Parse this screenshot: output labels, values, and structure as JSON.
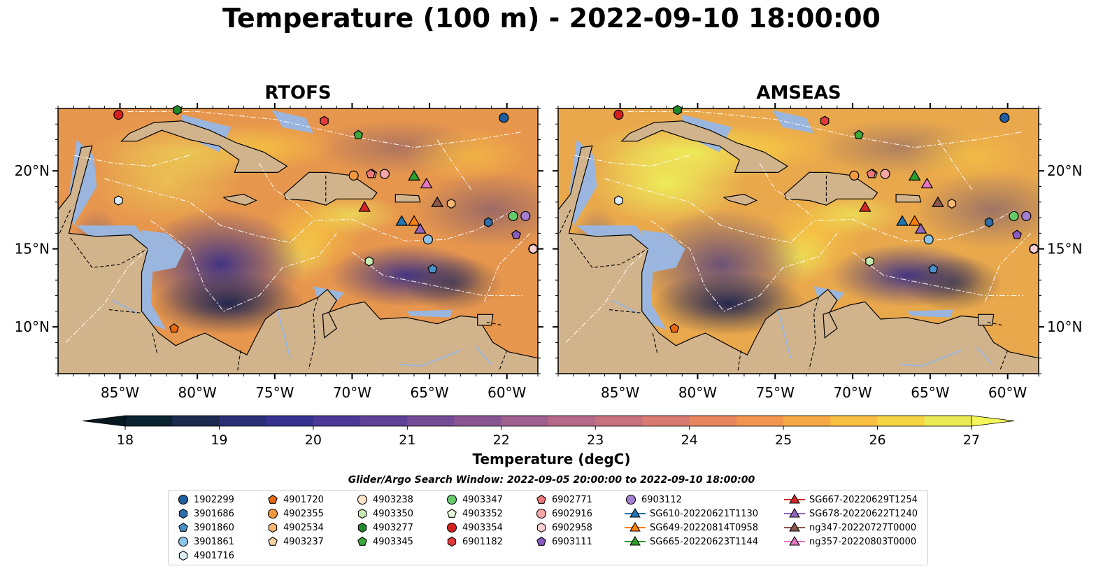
{
  "title": "Temperature (100 m) - 2022-09-10 18:00:00",
  "chart_data": [
    {
      "type": "heatmap",
      "title": "RTOFS",
      "variable": "Temperature (100 m)",
      "xlim": [
        -89,
        -58
      ],
      "ylim": [
        7,
        24
      ],
      "xticks": [
        "85°W",
        "80°W",
        "75°W",
        "70°W",
        "65°W",
        "60°W"
      ],
      "yticks": [
        "20°N",
        "15°N",
        "10°N"
      ]
    },
    {
      "type": "heatmap",
      "title": "AMSEAS",
      "variable": "Temperature (100 m)",
      "xlim": [
        -89,
        -58
      ],
      "ylim": [
        7,
        24
      ],
      "xticks": [
        "85°W",
        "80°W",
        "75°W",
        "70°W",
        "65°W",
        "60°W"
      ],
      "yticks": [
        "20°N",
        "15°N",
        "10°N"
      ]
    }
  ],
  "colorbar": {
    "label": "Temperature (degC)",
    "min": 18,
    "max": 27,
    "ticks": [
      "18",
      "19",
      "20",
      "21",
      "22",
      "23",
      "24",
      "25",
      "26",
      "27"
    ],
    "colors": [
      "#0b2230",
      "#1b2a4e",
      "#2b2f78",
      "#35338f",
      "#4a3996",
      "#5f4197",
      "#744b96",
      "#8a5594",
      "#9f5f8f",
      "#b56888",
      "#c8707e",
      "#d97a70",
      "#e8865f",
      "#f2964f",
      "#f7a945",
      "#f9bf40",
      "#f6d444",
      "#eaea56"
    ]
  },
  "search_window": "Glider/Argo Search Window: 2022-09-05 20:00:00 to 2022-09-10 18:00:00",
  "legend": [
    {
      "label": "1902299",
      "marker": "circle",
      "color": "#1f5fa0"
    },
    {
      "label": "3901686",
      "marker": "hexagon",
      "color": "#2f6ea8"
    },
    {
      "label": "3901860",
      "marker": "pentagon",
      "color": "#4a90c8"
    },
    {
      "label": "3901861",
      "marker": "circle",
      "color": "#8cc3e8"
    },
    {
      "label": "4901716",
      "marker": "hexagon",
      "color": "#dceefa"
    },
    {
      "label": "4901720",
      "marker": "pentagon",
      "color": "#e86a10"
    },
    {
      "label": "4902355",
      "marker": "circle",
      "color": "#f39a40"
    },
    {
      "label": "4902534",
      "marker": "hexagon",
      "color": "#f8b870"
    },
    {
      "label": "4903237",
      "marker": "pentagon",
      "color": "#fbd2a4"
    },
    {
      "label": "4903238",
      "marker": "circle",
      "color": "#fde5cc"
    },
    {
      "label": "4903350",
      "marker": "hexagon",
      "color": "#c4ecb0"
    },
    {
      "label": "4903277",
      "marker": "hexagon",
      "color": "#1e8a2a"
    },
    {
      "label": "4903345",
      "marker": "pentagon",
      "color": "#3aa83a"
    },
    {
      "label": "4903347",
      "marker": "circle",
      "color": "#66c96a"
    },
    {
      "label": "4903352",
      "marker": "pentagon",
      "color": "#e6f8dc"
    },
    {
      "label": "4903354",
      "marker": "circle",
      "color": "#d62020"
    },
    {
      "label": "6901182",
      "marker": "hexagon",
      "color": "#e23a3a"
    },
    {
      "label": "6902771",
      "marker": "pentagon",
      "color": "#f07a7a"
    },
    {
      "label": "6902916",
      "marker": "circle",
      "color": "#f6a6a6"
    },
    {
      "label": "6902958",
      "marker": "hexagon",
      "color": "#fbd0d0"
    },
    {
      "label": "6903111",
      "marker": "pentagon",
      "color": "#8a5cc0"
    },
    {
      "label": "6903112",
      "marker": "circle",
      "color": "#a57ed0"
    },
    {
      "label": "SG610-20220621T1130",
      "marker": "triangle-line",
      "color": "#1f77b4"
    },
    {
      "label": "SG649-20220814T0958",
      "marker": "triangle-line",
      "color": "#ff7f0e"
    },
    {
      "label": "SG665-20220623T1144",
      "marker": "triangle-line",
      "color": "#2ca02c"
    },
    {
      "label": "SG667-20220629T1254",
      "marker": "triangle-line",
      "color": "#d62728"
    },
    {
      "label": "SG678-20220622T1240",
      "marker": "triangle-line",
      "color": "#9467bd"
    },
    {
      "label": "ng347-20220727T0000",
      "marker": "triangle-line",
      "color": "#8c564b"
    },
    {
      "label": "ng357-20220803T0000",
      "marker": "triangle-line",
      "color": "#e377c2"
    }
  ],
  "observations": [
    {
      "id": "1902299",
      "lon": -60.2,
      "lat": 23.4
    },
    {
      "id": "3901686",
      "lon": -61.2,
      "lat": 16.7
    },
    {
      "id": "3901860",
      "lon": -64.8,
      "lat": 13.7
    },
    {
      "id": "3901861",
      "lon": -65.1,
      "lat": 15.6
    },
    {
      "id": "4901716",
      "lon": -85.1,
      "lat": 18.1
    },
    {
      "id": "4901720",
      "lon": -81.5,
      "lat": 9.9
    },
    {
      "id": "4902355",
      "lon": -69.9,
      "lat": 19.7
    },
    {
      "id": "4902534",
      "lon": -63.6,
      "lat": 17.9
    },
    {
      "id": "4903237",
      "lon": -68.7,
      "lat": 19.8
    },
    {
      "id": "4903238",
      "lon": -58.3,
      "lat": 15.0
    },
    {
      "id": "4903350",
      "lon": -68.9,
      "lat": 14.2
    },
    {
      "id": "4903277",
      "lon": -81.3,
      "lat": 23.9
    },
    {
      "id": "4903345",
      "lon": -69.6,
      "lat": 22.3
    },
    {
      "id": "4903347",
      "lon": -59.6,
      "lat": 17.1
    },
    {
      "id": "4903354",
      "lon": -85.1,
      "lat": 23.6
    },
    {
      "id": "6901182",
      "lon": -71.8,
      "lat": 23.2
    },
    {
      "id": "6902771",
      "lon": -68.8,
      "lat": 19.8
    },
    {
      "id": "6902916",
      "lon": -67.9,
      "lat": 19.8
    },
    {
      "id": "6902958",
      "lon": -58.3,
      "lat": 15.0
    },
    {
      "id": "6903111",
      "lon": -59.4,
      "lat": 15.9
    },
    {
      "id": "6903112",
      "lon": -58.8,
      "lat": 17.1
    },
    {
      "id": "SG610-20220621T1130",
      "lon": -66.8,
      "lat": 16.8
    },
    {
      "id": "SG649-20220814T0958",
      "lon": -66.0,
      "lat": 16.8
    },
    {
      "id": "SG665-20220623T1144",
      "lon": -66.0,
      "lat": 19.7
    },
    {
      "id": "SG667-20220629T1254",
      "lon": -69.2,
      "lat": 17.7
    },
    {
      "id": "SG678-20220622T1240",
      "lon": -65.6,
      "lat": 16.3
    },
    {
      "id": "ng347-20220727T0000",
      "lon": -64.5,
      "lat": 18.0
    },
    {
      "id": "ng357-20220803T0000",
      "lon": -65.2,
      "lat": 19.2
    }
  ]
}
